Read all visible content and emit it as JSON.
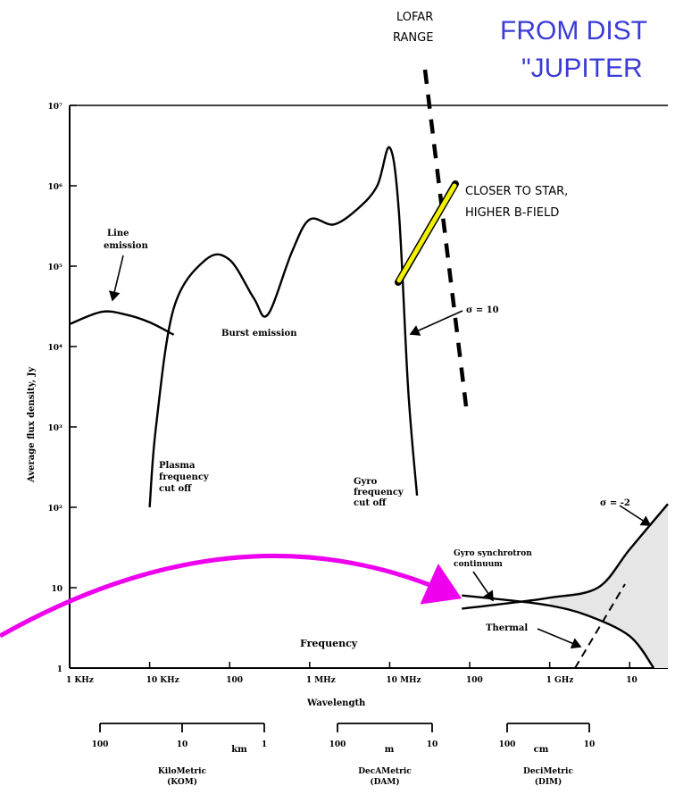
{
  "headline": {
    "line1": "FROM DIST",
    "line2": "\"JUPITER"
  },
  "lofar_label": {
    "line1": "LOFAR",
    "line2": "RANGE"
  },
  "closer_label": {
    "line1": "CLOSER TO STAR,",
    "line2": "HIGHER B-FIELD"
  },
  "colors": {
    "headline": "#3b3bd6",
    "curve": "#000000",
    "yellow_arrow": "#f2f200",
    "magenta_arrow": "#ee00ee",
    "shade": "#e6e6e6"
  },
  "chart_data": {
    "type": "line",
    "xlabel": "Frequency",
    "ylabel": "Average flux density, Jy",
    "y_scale": "log",
    "ylim": [
      1,
      10000000
    ],
    "y_ticks": [
      {
        "value": 1,
        "label": "1"
      },
      {
        "value": 10,
        "label": "10"
      },
      {
        "value": 100,
        "label": "10²"
      },
      {
        "value": 1000,
        "label": "10³"
      },
      {
        "value": 10000,
        "label": "10⁴"
      },
      {
        "value": 100000,
        "label": "10⁵"
      },
      {
        "value": 1000000,
        "label": "10⁶"
      },
      {
        "value": 10000000,
        "label": "10⁷"
      }
    ],
    "x_scale": "log",
    "x_unit": "Hz",
    "xlim": [
      1000,
      30000000000
    ],
    "x_ticks": [
      {
        "value": 1000,
        "label": "1   KHz"
      },
      {
        "value": 10000,
        "label": "10   KHz"
      },
      {
        "value": 100000,
        "label": "100"
      },
      {
        "value": 1000000,
        "label": "1   MHz"
      },
      {
        "value": 10000000,
        "label": "10   MHz"
      },
      {
        "value": 100000000,
        "label": "100"
      },
      {
        "value": 1000000000,
        "label": "1   GHz"
      },
      {
        "value": 10000000000,
        "label": "10"
      }
    ],
    "wavelength_label": "Wavelength",
    "wavelength_bands": [
      {
        "ticks": [
          "100",
          "10",
          "1"
        ],
        "unit": "km",
        "name": "KiloMetric",
        "code": "(KOM)"
      },
      {
        "ticks": [
          "100",
          "10"
        ],
        "unit": "m",
        "name": "DecAMetric",
        "code": "(DAM)"
      },
      {
        "ticks": [
          "100",
          "10"
        ],
        "unit": "cm",
        "name": "DeciMetric",
        "code": "(DIM)"
      }
    ],
    "series": [
      {
        "name": "Line emission",
        "x": [
          1000,
          2500,
          5000,
          10000,
          20000
        ],
        "y": [
          19000,
          27000,
          25000,
          20000,
          14000
        ]
      },
      {
        "name": "Burst emission",
        "x": [
          10000,
          12000,
          20000,
          50000,
          100000,
          200000,
          300000,
          600000,
          1000000,
          2000000,
          4000000,
          7000000,
          10000000,
          13000000,
          17000000,
          22000000
        ],
        "y": [
          100,
          1000,
          30000,
          120000,
          120000,
          40000,
          25000,
          150000,
          380000,
          330000,
          520000,
          1000000,
          3000000,
          500000,
          3000,
          140
        ]
      },
      {
        "name": "Gyro synchrotron continuum",
        "x": [
          80000000,
          300000000,
          1000000000,
          4000000000,
          10000000000,
          30000000000
        ],
        "y": [
          5.5,
          6.4,
          7.5,
          10,
          30,
          110
        ]
      },
      {
        "name": "Thermal",
        "x": [
          80000000,
          300000000,
          1000000000,
          3000000000,
          10000000000,
          20000000000
        ],
        "y": [
          8,
          7,
          6,
          4.5,
          2.5,
          1
        ]
      }
    ],
    "annotations": [
      {
        "text": "Line emission"
      },
      {
        "text": "Burst emission"
      },
      {
        "text": "Plasma frequency cut off"
      },
      {
        "text": "Gyro frequency cut off"
      },
      {
        "text": "σ = 10"
      },
      {
        "text": "σ = -2"
      },
      {
        "text": "Gyro synchrotron continuum"
      },
      {
        "text": "Thermal"
      }
    ]
  }
}
